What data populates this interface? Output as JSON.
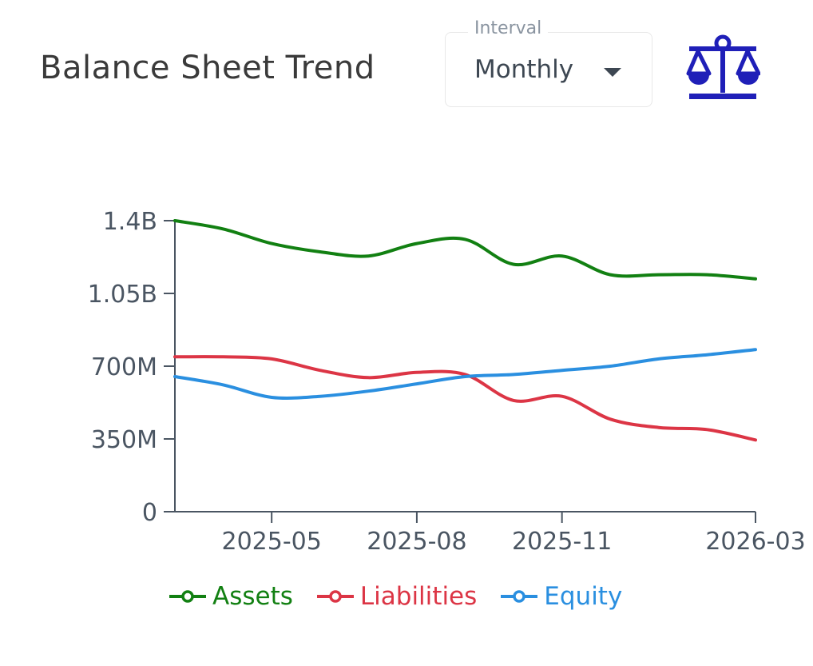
{
  "header": {
    "title": "Balance Sheet Trend",
    "interval_label": "Interval",
    "interval_value": "Monthly",
    "icon": "scale-balance-icon",
    "icon_color": "#1f1fb8"
  },
  "chart_data": {
    "type": "line",
    "x": [
      "2025-03",
      "2025-04",
      "2025-05",
      "2025-06",
      "2025-07",
      "2025-08",
      "2025-09",
      "2025-10",
      "2025-11",
      "2025-12",
      "2026-01",
      "2026-02",
      "2026-03"
    ],
    "xticks": [
      "2025-05",
      "2025-08",
      "2025-11",
      "2026-03"
    ],
    "yticks": [
      "0",
      "350M",
      "700M",
      "1.05B",
      "1.4B"
    ],
    "ylim": [
      0,
      1400000000
    ],
    "grid": false,
    "legend_position": "bottom",
    "series": [
      {
        "name": "Assets",
        "color": "#128012",
        "values": [
          1400000000,
          1360000000,
          1290000000,
          1250000000,
          1230000000,
          1290000000,
          1310000000,
          1190000000,
          1230000000,
          1140000000,
          1140000000,
          1140000000,
          1120000000
        ]
      },
      {
        "name": "Liabilities",
        "color": "#dc3545",
        "values": [
          745000000,
          745000000,
          735000000,
          680000000,
          645000000,
          670000000,
          660000000,
          535000000,
          555000000,
          445000000,
          405000000,
          395000000,
          345000000
        ]
      },
      {
        "name": "Equity",
        "color": "#2a8fe0",
        "values": [
          650000000,
          610000000,
          550000000,
          555000000,
          580000000,
          615000000,
          650000000,
          660000000,
          680000000,
          700000000,
          735000000,
          755000000,
          780000000
        ]
      }
    ]
  }
}
